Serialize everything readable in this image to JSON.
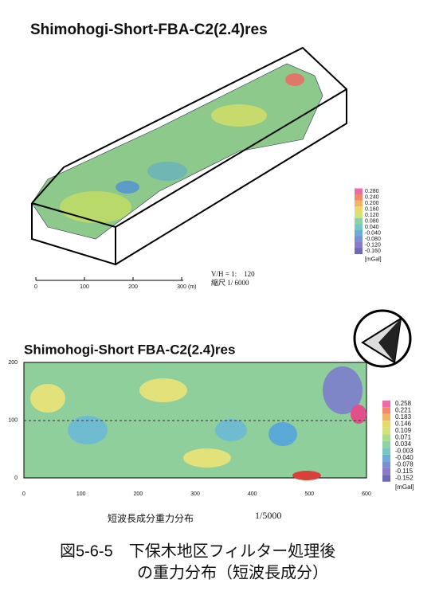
{
  "top_map": {
    "title": "Shimohogi-Short-FBA-C2(2.4)res",
    "legend": {
      "labels": [
        "0.280",
        "0.240",
        "0.200",
        "0.160",
        "0.120",
        "0.080",
        "0.040",
        "-0.040",
        "-0.080",
        "-0.120",
        "-0.160"
      ],
      "unit": "[mGal]"
    },
    "scale_bar": {
      "ticks": [
        "0",
        "100",
        "200",
        "300"
      ],
      "unit": "(m)"
    },
    "ratio": "V/H = 1:　120",
    "scale": "縮尺 1/ 6000"
  },
  "bottom_map": {
    "title": "Shimohogi-Short FBA-C2(2.4)res",
    "y_ticks": [
      "200",
      "100",
      "0"
    ],
    "x_ticks": [
      "0",
      "100",
      "200",
      "300",
      "400",
      "500",
      "600"
    ],
    "legend": {
      "labels": [
        "0.258",
        "0.221",
        "0.183",
        "0.146",
        "0.109",
        "0.071",
        "0.034",
        "-0.003",
        "-0.040",
        "-0.078",
        "-0.115",
        "-0.152"
      ],
      "unit": "[mGal]"
    },
    "caption": "短波長成分重力分布",
    "scale": "1/5000"
  },
  "figure_caption": {
    "line1": "図5-6-5　下保木地区フィルター処理後",
    "line2": "の重力分布（短波長成分）"
  }
}
